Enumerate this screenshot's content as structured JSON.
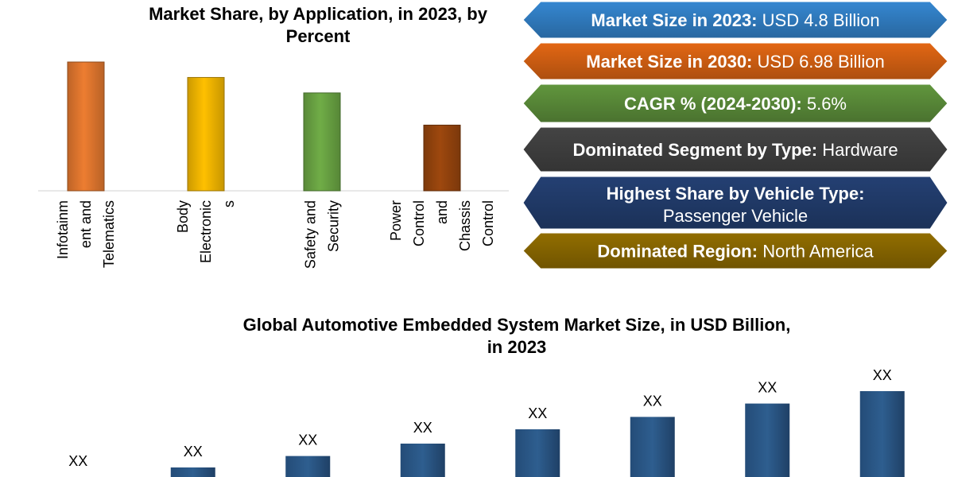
{
  "chart_data": [
    {
      "type": "bar",
      "title": "Market Share, by Application, in 2023, by Percent",
      "categories": [
        "Infotainment and Telematics",
        "Body Electronics",
        "Safety and Security",
        "Power Control and Chassis Control"
      ],
      "category_label_lines": [
        [
          "Infotainm",
          "ent and",
          "Telematics"
        ],
        [
          "Body",
          "Electronic",
          "s"
        ],
        [
          "Safety and",
          "Security"
        ],
        [
          "Power",
          "Control",
          "and",
          "Chassis",
          "Control"
        ]
      ],
      "values": [
        100,
        88,
        76,
        51
      ],
      "colors": [
        "#ED7D31",
        "#FFC000",
        "#70AD47",
        "#9E480E"
      ],
      "ylim": [
        0,
        100
      ]
    },
    {
      "type": "bar",
      "title": "Global Automotive Embedded System Market Size, in USD Billion, in 2023",
      "categories": [
        "",
        "",
        "",
        "",
        "",
        "",
        "",
        ""
      ],
      "values": [
        0.0,
        1.0,
        2.2,
        3.5,
        5.0,
        6.3,
        7.7,
        9.0
      ],
      "data_labels": [
        "XX",
        "XX",
        "XX",
        "XX",
        "XX",
        "XX",
        "XX",
        "XX"
      ],
      "color": "#2E5E8F",
      "ylim": [
        0,
        10
      ]
    }
  ],
  "banners": [
    {
      "bold": "Market Size in 2023:",
      "text": " USD 4.8  Billion",
      "color": "#2E75B6"
    },
    {
      "bold": "Market Size in 2030:",
      "text": " USD 6.98 Billion",
      "color": "#C55A11"
    },
    {
      "bold": "CAGR % (2024-2030):",
      "text": " 5.6%",
      "color": "#548235"
    },
    {
      "bold": "Dominated Segment by Type:",
      "text": " Hardware",
      "color": "#3B3B3B"
    },
    {
      "bold": "Highest Share by Vehicle Type:",
      "text": "Passenger Vehicle",
      "color": "#1F3864"
    },
    {
      "bold": "Dominated Region:",
      "text": " North America",
      "color": "#7F6000"
    }
  ]
}
